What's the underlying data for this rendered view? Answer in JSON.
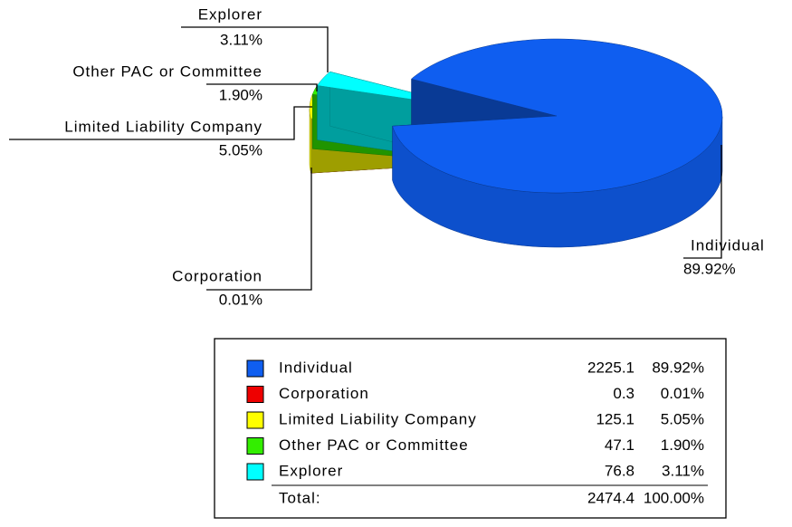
{
  "chart_data": {
    "type": "pie3d",
    "categories": [
      "Individual",
      "Corporation",
      "Limited Liability Company",
      "Other PAC or Committee",
      "Explorer"
    ],
    "values": [
      89.92,
      0.01,
      5.05,
      1.9,
      3.11
    ],
    "value_labels": [
      "89.92%",
      "0.01%",
      "5.05%",
      "1.90%",
      "3.11%"
    ],
    "amounts": [
      2225.1,
      0.3,
      125.1,
      47.1,
      76.8
    ],
    "colors": [
      "#0f5ef0",
      "#ee0000",
      "#ffff00",
      "#33ee00",
      "#00ffff"
    ],
    "total": {
      "label": "Total:",
      "amount": 2474.4,
      "percent": {
        "value": 100,
        "label": "100.00%"
      }
    }
  }
}
